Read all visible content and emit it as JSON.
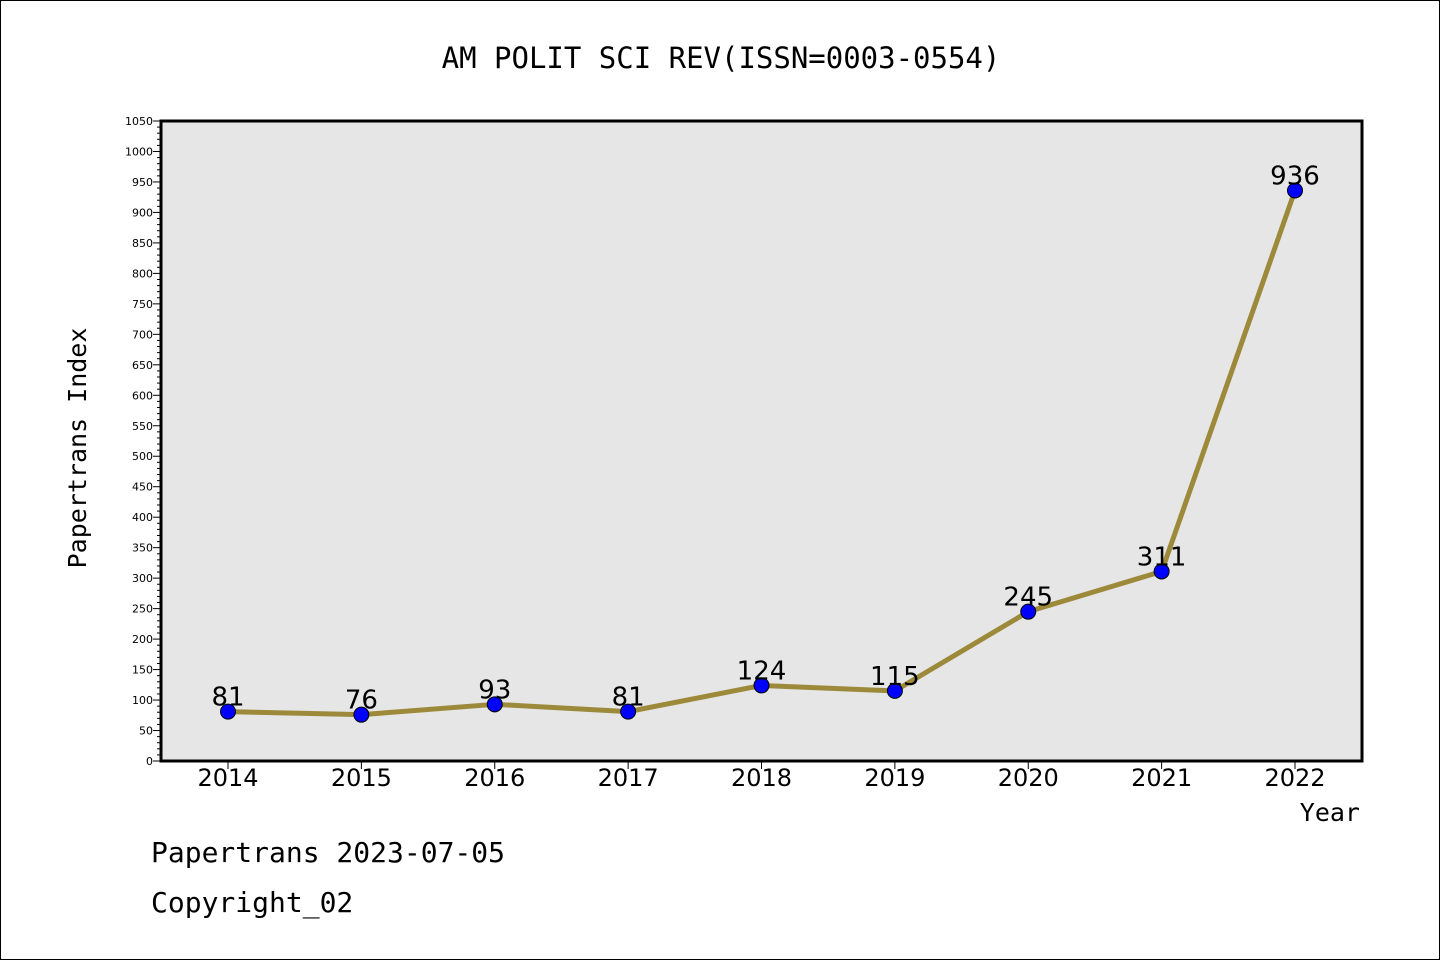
{
  "chart_data": {
    "type": "line",
    "title": "AM POLIT SCI REV(ISSN=0003-0554)",
    "xlabel": "Year",
    "ylabel": "Papertrans Index",
    "categories": [
      "2014",
      "2015",
      "2016",
      "2017",
      "2018",
      "2019",
      "2020",
      "2021",
      "2022"
    ],
    "values": [
      81,
      76,
      93,
      81,
      124,
      115,
      245,
      311,
      936
    ],
    "data_labels": [
      "81",
      "76",
      "93",
      "81",
      "124",
      "115",
      "245",
      "311",
      "936"
    ],
    "ylim": [
      0,
      1050
    ],
    "yticks": [
      0,
      50,
      100,
      150,
      200,
      250,
      300,
      350,
      400,
      450,
      500,
      550,
      600,
      650,
      700,
      750,
      800,
      850,
      900,
      950,
      1000,
      1050
    ],
    "grid": false,
    "colors": {
      "line": "#9c8a3a",
      "marker": "#0000ff",
      "plot_background": "#e6e6e6"
    }
  },
  "footer": {
    "source": "Papertrans 2023-07-05",
    "copyright": "Copyright_02"
  }
}
